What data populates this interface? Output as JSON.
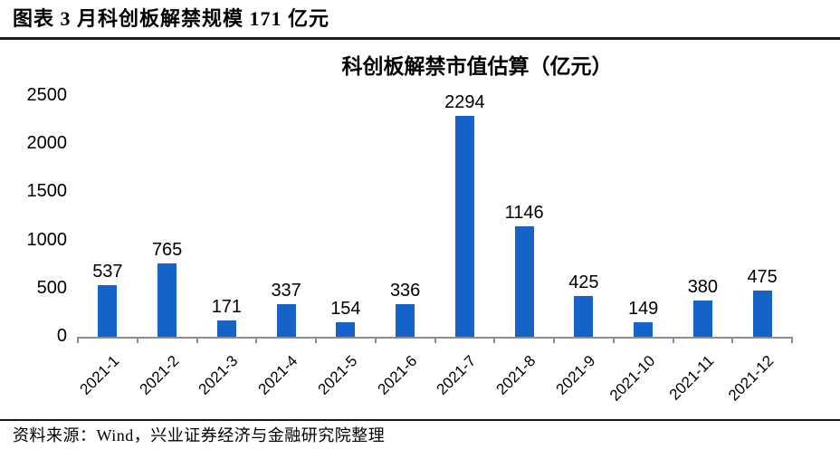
{
  "header": {
    "title": "图表  3 月科创板解禁规模 171 亿元"
  },
  "chart_data": {
    "type": "bar",
    "title": "科创板解禁市值估算（亿元）",
    "categories": [
      "2021-1",
      "2021-2",
      "2021-3",
      "2021-4",
      "2021-5",
      "2021-6",
      "2021-7",
      "2021-8",
      "2021-9",
      "2021-10",
      "2021-11",
      "2021-12"
    ],
    "values": [
      537,
      765,
      171,
      337,
      154,
      336,
      2294,
      1146,
      425,
      149,
      380,
      475
    ],
    "xlabel": "",
    "ylabel": "",
    "ylim": [
      0,
      2500
    ],
    "yticks": [
      0,
      500,
      1000,
      1500,
      2000,
      2500
    ],
    "grid": false,
    "legend": "none",
    "data_labels": true,
    "bar_color": "#1563C8",
    "axis_color": "#8C8C8C",
    "label_color": "#000000"
  },
  "footer": {
    "source": "资料来源：Wind，兴业证券经济与金融研究院整理"
  }
}
